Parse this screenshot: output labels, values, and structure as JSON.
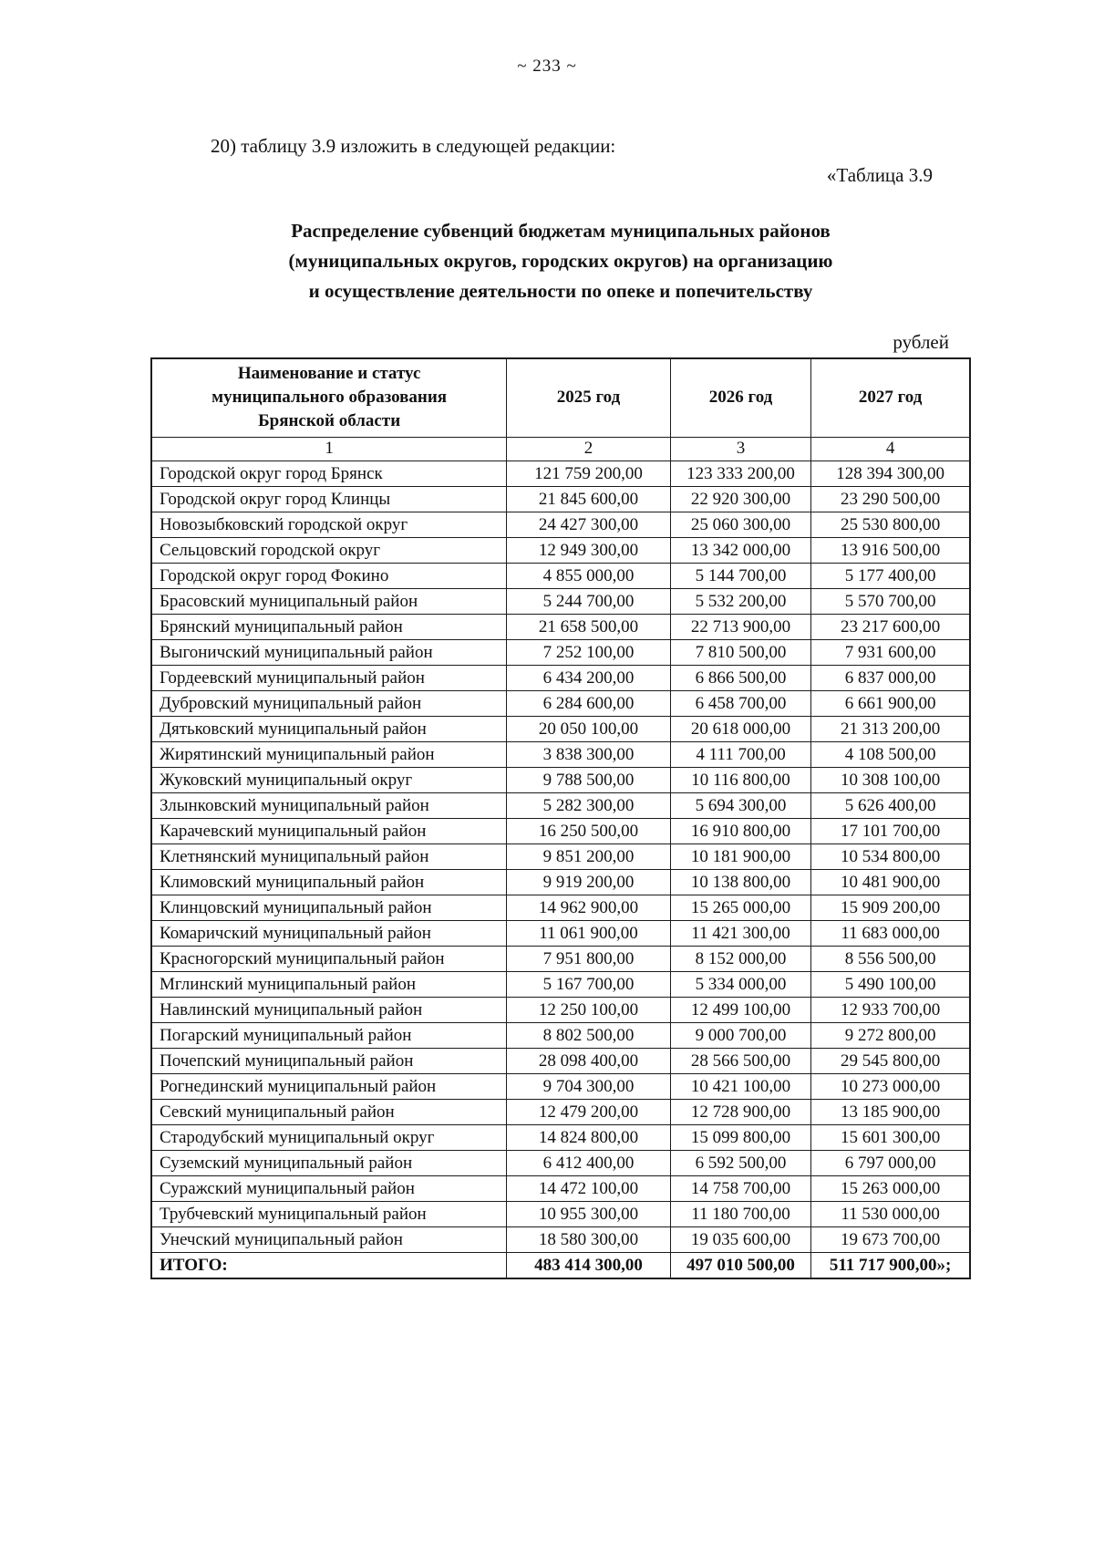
{
  "page": {
    "number": "~ 233 ~"
  },
  "intro": {
    "text": "20) таблицу 3.9 изложить в следующей редакции:",
    "table_ref": "«Таблица 3.9"
  },
  "title": {
    "lines": [
      "Распределение субвенций бюджетам муниципальных районов",
      "(муниципальных округов, городских округов) на организацию",
      "и осуществление деятельности по опеке и попечительству"
    ]
  },
  "units_label": "рублей",
  "table": {
    "name_header_lines": [
      "Наименование и статус",
      "муниципального образования",
      "Брянской области"
    ],
    "year_headers": [
      "2025 год",
      "2026 год",
      "2027 год"
    ],
    "column_numbers": [
      "1",
      "2",
      "3",
      "4"
    ],
    "rows": [
      [
        "Городской округ город Брянск",
        "121 759 200,00",
        "123 333 200,00",
        "128 394 300,00"
      ],
      [
        "Городской округ город Клинцы",
        "21 845 600,00",
        "22 920 300,00",
        "23 290 500,00"
      ],
      [
        "Новозыбковский городской округ",
        "24 427 300,00",
        "25 060 300,00",
        "25 530 800,00"
      ],
      [
        "Сельцовский городской округ",
        "12 949 300,00",
        "13 342 000,00",
        "13 916 500,00"
      ],
      [
        "Городской округ город Фокино",
        "4 855 000,00",
        "5 144 700,00",
        "5 177 400,00"
      ],
      [
        "Брасовский муниципальный район",
        "5 244 700,00",
        "5 532 200,00",
        "5 570 700,00"
      ],
      [
        "Брянский муниципальный район",
        "21 658 500,00",
        "22 713 900,00",
        "23 217 600,00"
      ],
      [
        "Выгоничский муниципальный район",
        "7 252 100,00",
        "7 810 500,00",
        "7 931 600,00"
      ],
      [
        "Гордеевский муниципальный район",
        "6 434 200,00",
        "6 866 500,00",
        "6 837 000,00"
      ],
      [
        "Дубровский муниципальный район",
        "6 284 600,00",
        "6 458 700,00",
        "6 661 900,00"
      ],
      [
        "Дятьковский муниципальный район",
        "20 050 100,00",
        "20 618 000,00",
        "21 313 200,00"
      ],
      [
        "Жирятинский муниципальный район",
        "3 838 300,00",
        "4 111 700,00",
        "4 108 500,00"
      ],
      [
        "Жуковский муниципальный округ",
        "9 788 500,00",
        "10 116 800,00",
        "10 308 100,00"
      ],
      [
        "Злынковский муниципальный район",
        "5 282 300,00",
        "5 694 300,00",
        "5 626 400,00"
      ],
      [
        "Карачевский муниципальный район",
        "16 250 500,00",
        "16 910 800,00",
        "17 101 700,00"
      ],
      [
        "Клетнянский муниципальный район",
        "9 851 200,00",
        "10 181 900,00",
        "10 534 800,00"
      ],
      [
        "Климовский муниципальный район",
        "9 919 200,00",
        "10 138 800,00",
        "10 481 900,00"
      ],
      [
        "Клинцовский муниципальный район",
        "14 962 900,00",
        "15 265 000,00",
        "15 909 200,00"
      ],
      [
        "Комаричский муниципальный район",
        "11 061 900,00",
        "11 421 300,00",
        "11 683 000,00"
      ],
      [
        "Красногорский муниципальный район",
        "7 951 800,00",
        "8 152 000,00",
        "8 556 500,00"
      ],
      [
        "Мглинский муниципальный район",
        "5 167 700,00",
        "5 334 000,00",
        "5 490 100,00"
      ],
      [
        "Навлинский муниципальный район",
        "12 250 100,00",
        "12 499 100,00",
        "12 933 700,00"
      ],
      [
        "Погарский муниципальный район",
        "8 802 500,00",
        "9 000 700,00",
        "9 272 800,00"
      ],
      [
        "Почепский муниципальный район",
        "28 098 400,00",
        "28 566 500,00",
        "29 545 800,00"
      ],
      [
        "Рогнединский муниципальный район",
        "9 704 300,00",
        "10 421 100,00",
        "10 273 000,00"
      ],
      [
        "Севский муниципальный район",
        "12 479 200,00",
        "12 728 900,00",
        "13 185 900,00"
      ],
      [
        "Стародубский муниципальный округ",
        "14 824 800,00",
        "15 099 800,00",
        "15 601 300,00"
      ],
      [
        "Суземский муниципальный район",
        "6 412 400,00",
        "6 592 500,00",
        "6 797 000,00"
      ],
      [
        "Суражский муниципальный район",
        "14 472 100,00",
        "14 758 700,00",
        "15 263 000,00"
      ],
      [
        "Трубчевский муниципальный район",
        "10 955 300,00",
        "11 180 700,00",
        "11 530 000,00"
      ],
      [
        "Унечский муниципальный район",
        "18 580 300,00",
        "19 035 600,00",
        "19 673 700,00"
      ]
    ],
    "total_row": [
      "ИТОГО:",
      "483 414 300,00",
      "497 010 500,00",
      "511 717 900,00»;"
    ]
  }
}
